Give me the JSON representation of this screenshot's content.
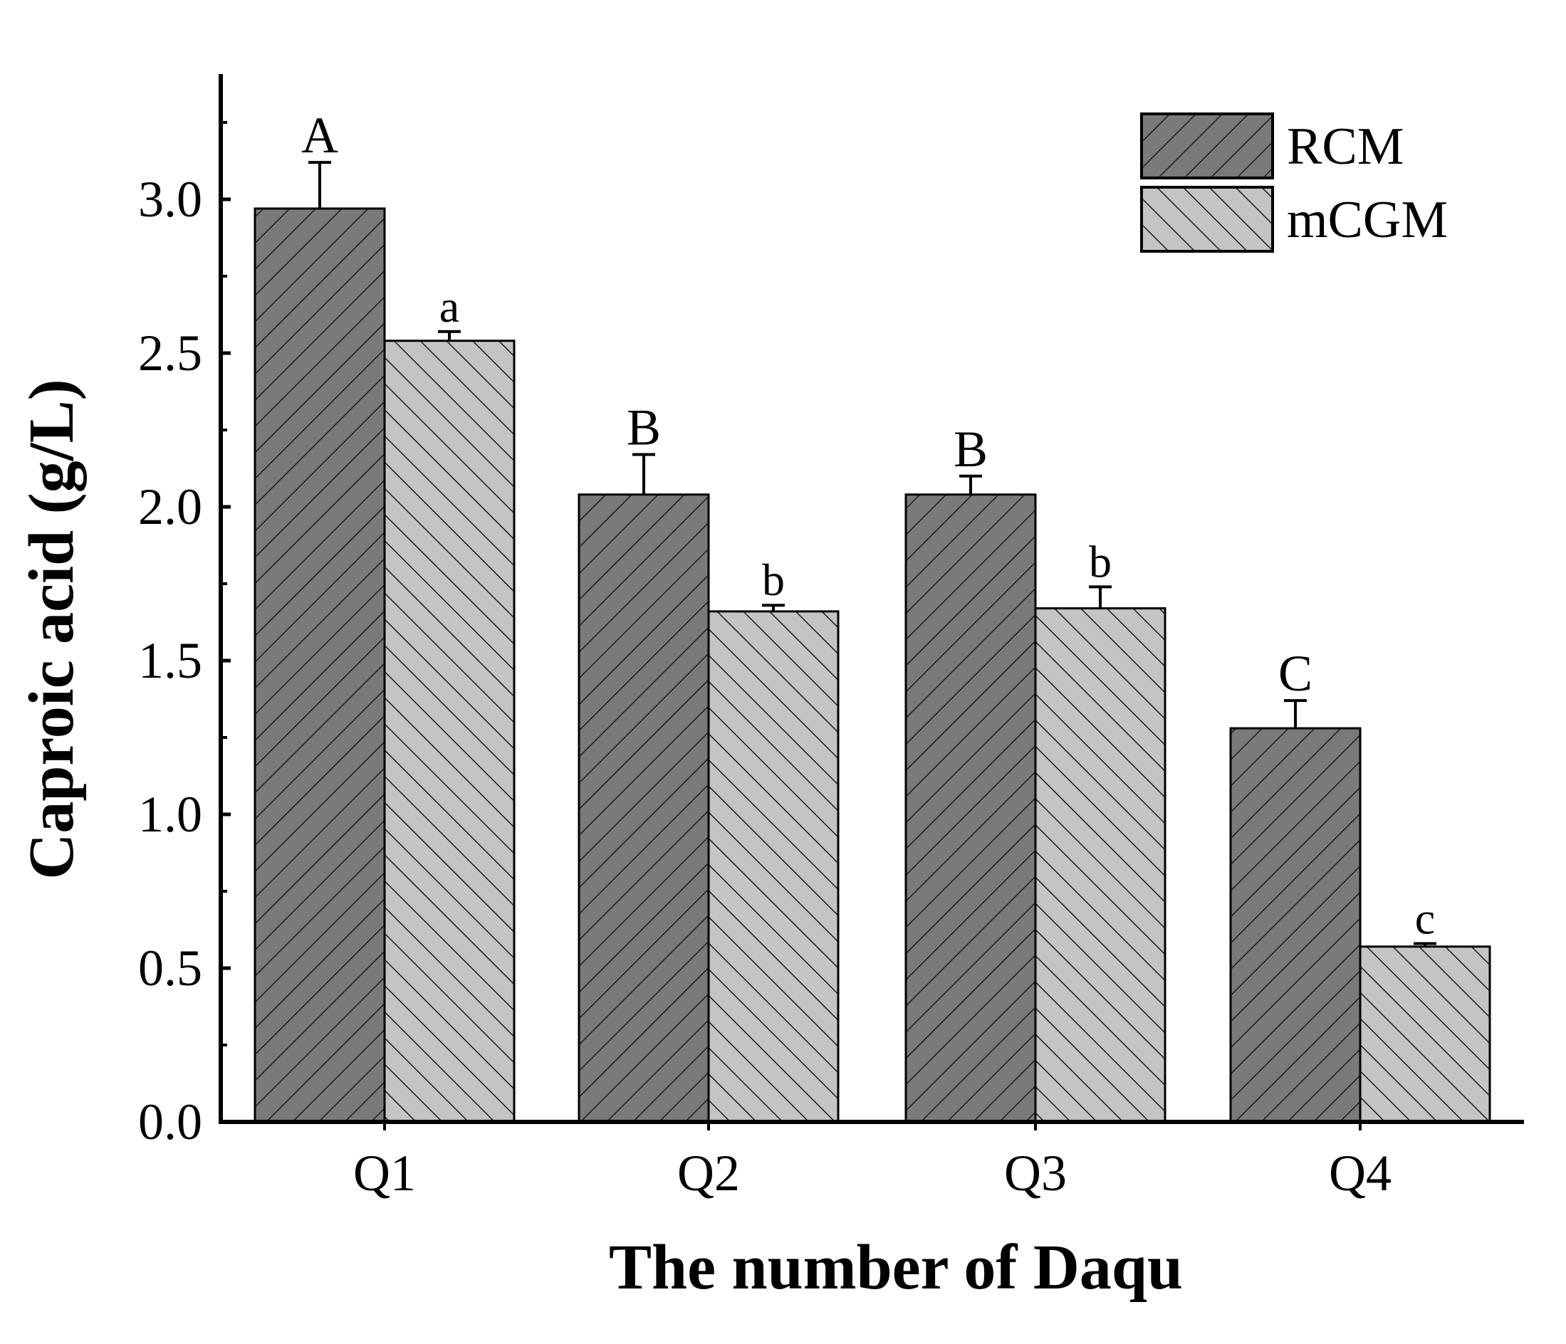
{
  "chart_data": {
    "type": "bar",
    "xlabel": "The number of Daqu",
    "ylabel": "Caproic acid (g/L)",
    "categories": [
      "Q1",
      "Q2",
      "Q3",
      "Q4"
    ],
    "ylim": [
      0,
      3.4
    ],
    "yticks": [
      0.0,
      0.5,
      1.0,
      1.5,
      2.0,
      2.5,
      3.0
    ],
    "ytick_labels": [
      "0.0",
      "0.5",
      "1.0",
      "1.5",
      "2.0",
      "2.5",
      "3.0"
    ],
    "legend_position": "top-right",
    "grid": false,
    "series": [
      {
        "name": "RCM",
        "color": "#7a7a7a",
        "hatch": "forward-diagonal",
        "values": [
          2.97,
          2.04,
          2.04,
          1.28
        ],
        "errors": [
          0.15,
          0.13,
          0.06,
          0.09
        ],
        "labels": [
          "A",
          "B",
          "B",
          "C"
        ]
      },
      {
        "name": "mCGM",
        "color": "#c4c4c4",
        "hatch": "backward-diagonal",
        "values": [
          2.54,
          1.66,
          1.67,
          0.57
        ],
        "errors": [
          0.03,
          0.02,
          0.07,
          0.01
        ],
        "labels": [
          "a",
          "b",
          "b",
          "c"
        ]
      }
    ]
  }
}
